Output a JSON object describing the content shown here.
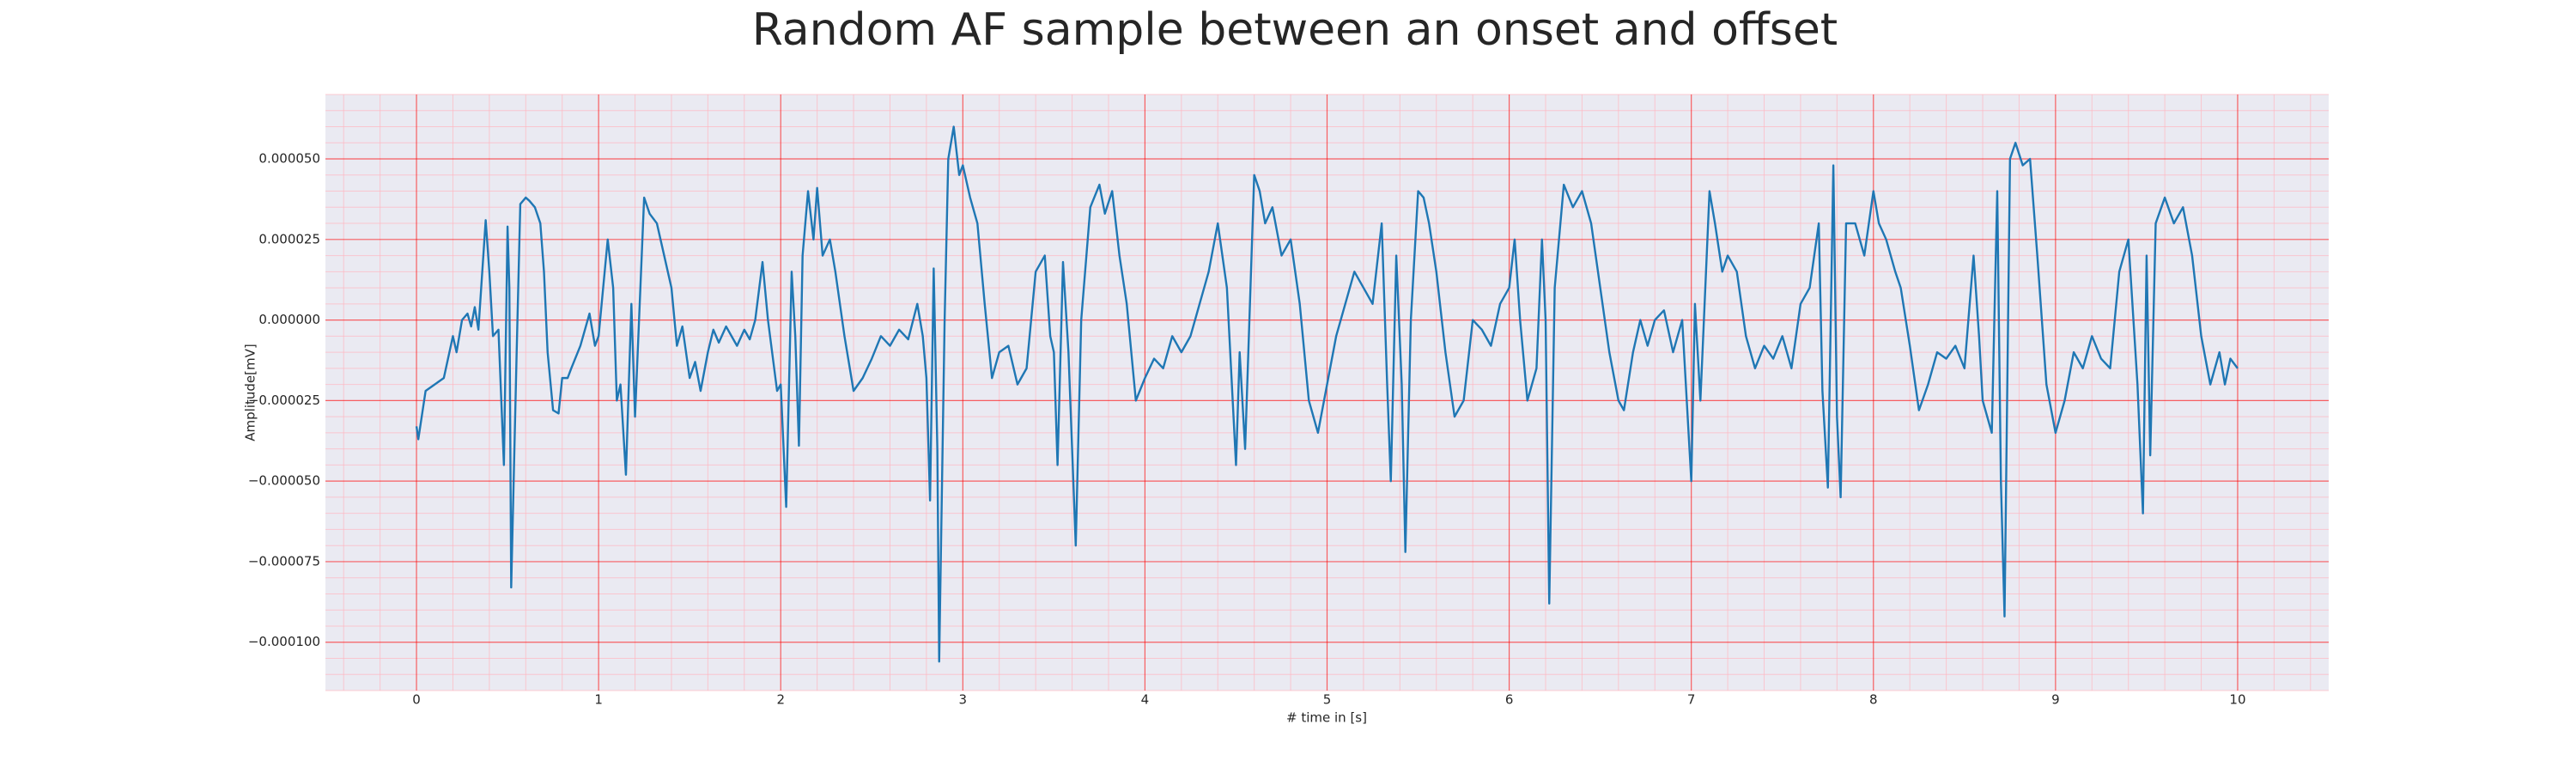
{
  "chart_data": {
    "type": "line",
    "title": "Random AF sample between an onset and offset",
    "xlabel": "# time in [s]",
    "ylabel": "Amplitude[mV]",
    "color": "#1f77b4",
    "grid": true,
    "grid_color": "#ff0000",
    "background": "#eaeaf2",
    "xlim": [
      -0.5,
      10.5
    ],
    "xticks": [
      0,
      1,
      2,
      3,
      4,
      5,
      6,
      7,
      8,
      9,
      10
    ],
    "ylim": [
      -0.000115,
      7e-05
    ],
    "yticks": [
      {
        "value": -0.0001,
        "label": "−0.000100"
      },
      {
        "value": -7.5e-05,
        "label": "−0.000075"
      },
      {
        "value": -5e-05,
        "label": "−0.000050"
      },
      {
        "value": -2.5e-05,
        "label": "−0.000025"
      },
      {
        "value": 0,
        "label": "0.000000"
      },
      {
        "value": 2.5e-05,
        "label": "0.000025"
      },
      {
        "value": 5e-05,
        "label": "0.000050"
      }
    ],
    "x": [
      0,
      0.01,
      0.05,
      0.1,
      0.15,
      0.2,
      0.22,
      0.25,
      0.28,
      0.3,
      0.32,
      0.34,
      0.38,
      0.4,
      0.42,
      0.45,
      0.48,
      0.5,
      0.51,
      0.52,
      0.55,
      0.57,
      0.6,
      0.62,
      0.65,
      0.68,
      0.7,
      0.72,
      0.75,
      0.78,
      0.8,
      0.83,
      0.85,
      0.9,
      0.95,
      0.98,
      1.0,
      1.05,
      1.08,
      1.1,
      1.12,
      1.15,
      1.18,
      1.2,
      1.25,
      1.28,
      1.32,
      1.36,
      1.4,
      1.43,
      1.46,
      1.5,
      1.53,
      1.56,
      1.6,
      1.63,
      1.66,
      1.7,
      1.73,
      1.76,
      1.8,
      1.83,
      1.86,
      1.9,
      1.93,
      1.98,
      2.0,
      2.03,
      2.06,
      2.08,
      2.1,
      2.12,
      2.15,
      2.18,
      2.2,
      2.23,
      2.27,
      2.3,
      2.35,
      2.4,
      2.45,
      2.5,
      2.55,
      2.6,
      2.65,
      2.7,
      2.75,
      2.78,
      2.8,
      2.82,
      2.84,
      2.86,
      2.87,
      2.9,
      2.92,
      2.95,
      2.98,
      3.0,
      3.04,
      3.08,
      3.12,
      3.16,
      3.2,
      3.25,
      3.3,
      3.35,
      3.4,
      3.45,
      3.48,
      3.5,
      3.52,
      3.55,
      3.58,
      3.62,
      3.65,
      3.7,
      3.75,
      3.78,
      3.82,
      3.86,
      3.9,
      3.95,
      4.0,
      4.05,
      4.1,
      4.15,
      4.2,
      4.25,
      4.3,
      4.35,
      4.4,
      4.45,
      4.5,
      4.52,
      4.55,
      4.6,
      4.63,
      4.66,
      4.7,
      4.75,
      4.8,
      4.85,
      4.9,
      4.95,
      5.0,
      5.05,
      5.1,
      5.15,
      5.2,
      5.25,
      5.3,
      5.33,
      5.35,
      5.38,
      5.41,
      5.43,
      5.46,
      5.5,
      5.53,
      5.56,
      5.6,
      5.65,
      5.7,
      5.75,
      5.8,
      5.85,
      5.9,
      5.95,
      6.0,
      6.03,
      6.06,
      6.1,
      6.15,
      6.18,
      6.2,
      6.22,
      6.25,
      6.3,
      6.35,
      6.4,
      6.45,
      6.5,
      6.55,
      6.6,
      6.63,
      6.68,
      6.72,
      6.76,
      6.8,
      6.85,
      6.9,
      6.95,
      7.0,
      7.02,
      7.05,
      7.1,
      7.13,
      7.17,
      7.2,
      7.25,
      7.3,
      7.35,
      7.4,
      7.45,
      7.5,
      7.55,
      7.6,
      7.65,
      7.7,
      7.72,
      7.75,
      7.78,
      7.8,
      7.82,
      7.85,
      7.9,
      7.95,
      8.0,
      8.03,
      8.07,
      8.12,
      8.15,
      8.2,
      8.25,
      8.3,
      8.35,
      8.4,
      8.45,
      8.5,
      8.55,
      8.58,
      8.6,
      8.65,
      8.68,
      8.7,
      8.72,
      8.75,
      8.78,
      8.82,
      8.86,
      8.9,
      8.95,
      9.0,
      9.05,
      9.1,
      9.15,
      9.2,
      9.25,
      9.3,
      9.35,
      9.4,
      9.45,
      9.48,
      9.5,
      9.52,
      9.55,
      9.6,
      9.65,
      9.7,
      9.75,
      9.8,
      9.85,
      9.9,
      9.93,
      9.96,
      10.0
    ],
    "values": [
      -3.3e-05,
      -3.7e-05,
      -2.2e-05,
      -2e-05,
      -1.8e-05,
      -5e-06,
      -1e-05,
      0,
      2e-06,
      -2e-06,
      4e-06,
      -3e-06,
      3.1e-05,
      1.5e-05,
      -5e-06,
      -3e-06,
      -4.5e-05,
      2.9e-05,
      1e-05,
      -8.3e-05,
      -1e-05,
      3.6e-05,
      3.8e-05,
      3.7e-05,
      3.5e-05,
      3e-05,
      1.5e-05,
      -1e-05,
      -2.8e-05,
      -2.9e-05,
      -1.8e-05,
      -1.8e-05,
      -1.5e-05,
      -8e-06,
      2e-06,
      -8e-06,
      -5e-06,
      2.5e-05,
      1e-05,
      -2.5e-05,
      -2e-05,
      -4.8e-05,
      5e-06,
      -3e-05,
      3.8e-05,
      3.3e-05,
      3e-05,
      2e-05,
      1e-05,
      -8e-06,
      -2e-06,
      -1.8e-05,
      -1.3e-05,
      -2.2e-05,
      -1e-05,
      -3e-06,
      -7e-06,
      -2e-06,
      -5e-06,
      -8e-06,
      -3e-06,
      -6e-06,
      0,
      1.8e-05,
      0,
      -2.2e-05,
      -2e-05,
      -5.8e-05,
      1.5e-05,
      -5e-06,
      -3.9e-05,
      2e-05,
      4e-05,
      2.5e-05,
      4.1e-05,
      2e-05,
      2.5e-05,
      1.5e-05,
      -5e-06,
      -2.2e-05,
      -1.8e-05,
      -1.2e-05,
      -5e-06,
      -8e-06,
      -3e-06,
      -6e-06,
      5e-06,
      -5e-06,
      -1.8e-05,
      -5.6e-05,
      1.6e-05,
      -4e-05,
      -0.000106,
      0,
      5e-05,
      6e-05,
      4.5e-05,
      4.8e-05,
      3.8e-05,
      3e-05,
      5e-06,
      -1.8e-05,
      -1e-05,
      -8e-06,
      -2e-05,
      -1.5e-05,
      1.5e-05,
      2e-05,
      -5e-06,
      -1e-05,
      -4.5e-05,
      1.8e-05,
      -1e-05,
      -7e-05,
      0,
      3.5e-05,
      4.2e-05,
      3.3e-05,
      4e-05,
      2e-05,
      5e-06,
      -2.5e-05,
      -1.8e-05,
      -1.2e-05,
      -1.5e-05,
      -5e-06,
      -1e-05,
      -5e-06,
      5e-06,
      1.5e-05,
      3e-05,
      1e-05,
      -4.5e-05,
      -1e-05,
      -4e-05,
      4.5e-05,
      4e-05,
      3e-05,
      3.5e-05,
      2e-05,
      2.5e-05,
      5e-06,
      -2.5e-05,
      -3.5e-05,
      -2e-05,
      -5e-06,
      5e-06,
      1.5e-05,
      1e-05,
      5e-06,
      3e-05,
      -2e-05,
      -5e-05,
      2e-05,
      -2e-05,
      -7.2e-05,
      0,
      4e-05,
      3.8e-05,
      3e-05,
      1.5e-05,
      -1e-05,
      -3e-05,
      -2.5e-05,
      0,
      -3e-06,
      -8e-06,
      5e-06,
      1e-05,
      2.5e-05,
      0,
      -2.5e-05,
      -1.5e-05,
      2.5e-05,
      0,
      -8.8e-05,
      1e-05,
      4.2e-05,
      3.5e-05,
      4e-05,
      3e-05,
      1e-05,
      -1e-05,
      -2.5e-05,
      -2.8e-05,
      -1e-05,
      0,
      -8e-06,
      0,
      3e-06,
      -1e-05,
      0,
      -5e-05,
      5e-06,
      -2.5e-05,
      4e-05,
      3e-05,
      1.5e-05,
      2e-05,
      1.5e-05,
      -5e-06,
      -1.5e-05,
      -8e-06,
      -1.2e-05,
      -5e-06,
      -1.5e-05,
      5e-06,
      1e-05,
      3e-05,
      -2.2e-05,
      -5.2e-05,
      4.8e-05,
      -3e-05,
      -5.5e-05,
      3e-05,
      3e-05,
      2e-05,
      4e-05,
      3e-05,
      2.5e-05,
      1.5e-05,
      1e-05,
      -8e-06,
      -2.8e-05,
      -2e-05,
      -1e-05,
      -1.2e-05,
      -8e-06,
      -1.5e-05,
      2e-05,
      -5e-06,
      -2.5e-05,
      -3.5e-05,
      4e-05,
      -5e-05,
      -9.2e-05,
      5e-05,
      5.5e-05,
      4.8e-05,
      5e-05,
      2e-05,
      -2e-05,
      -3.5e-05,
      -2.5e-05,
      -1e-05,
      -1.5e-05,
      -5e-06,
      -1.2e-05,
      -1.5e-05,
      1.5e-05,
      2.5e-05,
      -2e-05,
      -6e-05,
      2e-05,
      -4.2e-05,
      3e-05,
      3.8e-05,
      3e-05,
      3.5e-05,
      2e-05,
      -5e-06,
      -2e-05,
      -1e-05,
      -2e-05,
      -1.2e-05,
      -1.5e-05
    ]
  }
}
